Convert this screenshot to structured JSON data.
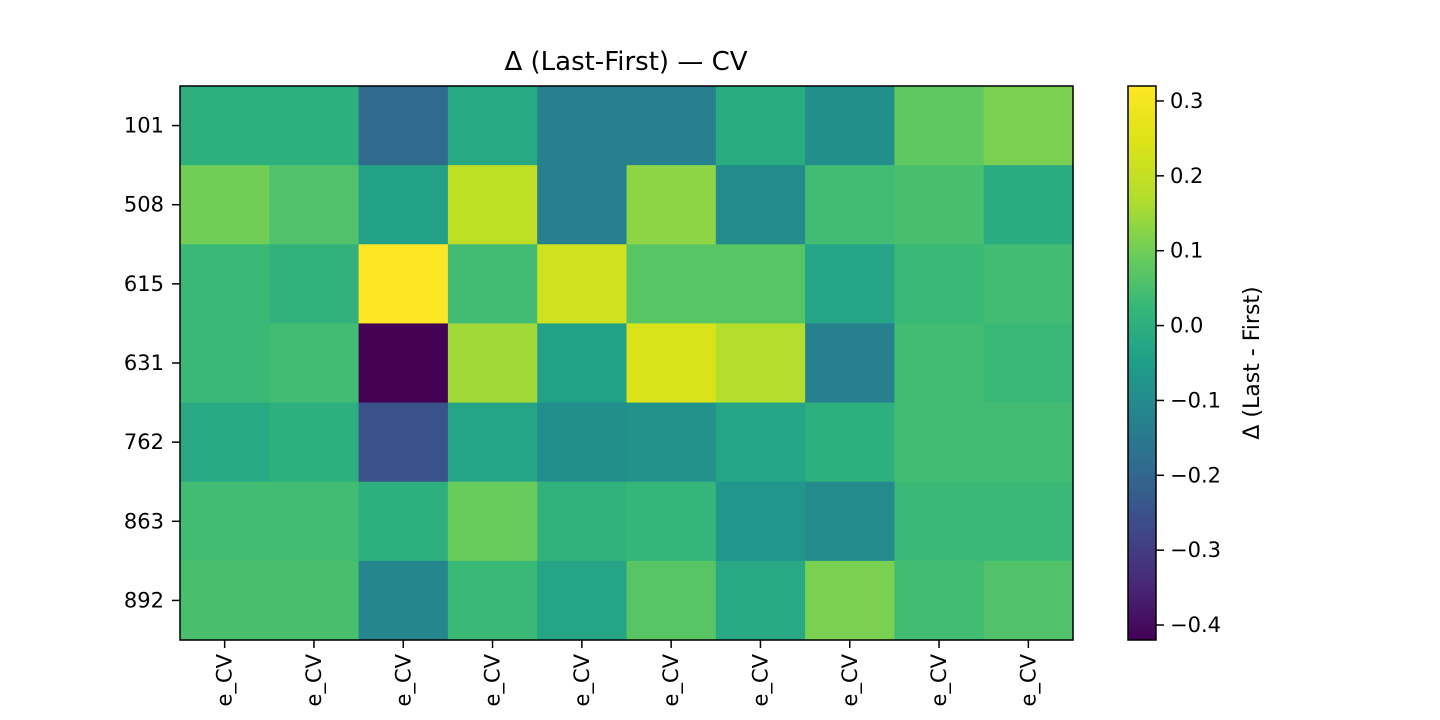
{
  "chart_data": {
    "type": "heatmap",
    "title": "Δ (Last-First) — CV",
    "rows": [
      "101",
      "508",
      "615",
      "631",
      "762",
      "863",
      "892"
    ],
    "columns": [
      "e_CV",
      "e_CV",
      "e_CV",
      "e_CV",
      "e_CV",
      "e_CV",
      "e_CV",
      "e_CV",
      "e_CV",
      "e_CV"
    ],
    "values": [
      [
        0.0,
        0.0,
        -0.19,
        -0.02,
        -0.13,
        -0.13,
        -0.01,
        -0.09,
        0.08,
        0.11
      ],
      [
        0.1,
        0.06,
        -0.04,
        0.19,
        -0.13,
        0.13,
        -0.1,
        0.04,
        0.05,
        -0.01
      ],
      [
        0.03,
        0.01,
        0.32,
        0.04,
        0.22,
        0.07,
        0.07,
        -0.03,
        0.03,
        0.04
      ],
      [
        0.03,
        0.04,
        -0.42,
        0.15,
        -0.04,
        0.24,
        0.17,
        -0.13,
        0.04,
        0.03
      ],
      [
        -0.02,
        0.0,
        -0.25,
        -0.03,
        -0.09,
        -0.08,
        -0.03,
        0.0,
        0.04,
        0.04
      ],
      [
        0.04,
        0.04,
        0.0,
        0.09,
        0.01,
        0.02,
        -0.07,
        -0.1,
        0.03,
        0.03
      ],
      [
        0.05,
        0.05,
        -0.11,
        0.03,
        -0.03,
        0.07,
        -0.02,
        0.11,
        0.04,
        0.06
      ]
    ],
    "colorbar": {
      "label": "Δ (Last - First)",
      "vmin": -0.42,
      "vmax": 0.32,
      "ticks": [
        0.3,
        0.2,
        0.1,
        0.0,
        -0.1,
        -0.2,
        -0.3,
        -0.4
      ],
      "tick_labels": [
        "0.3",
        "0.2",
        "0.1",
        "0.0",
        "−0.1",
        "−0.2",
        "−0.3",
        "−0.4"
      ],
      "colormap": "viridis"
    },
    "grid": false
  }
}
